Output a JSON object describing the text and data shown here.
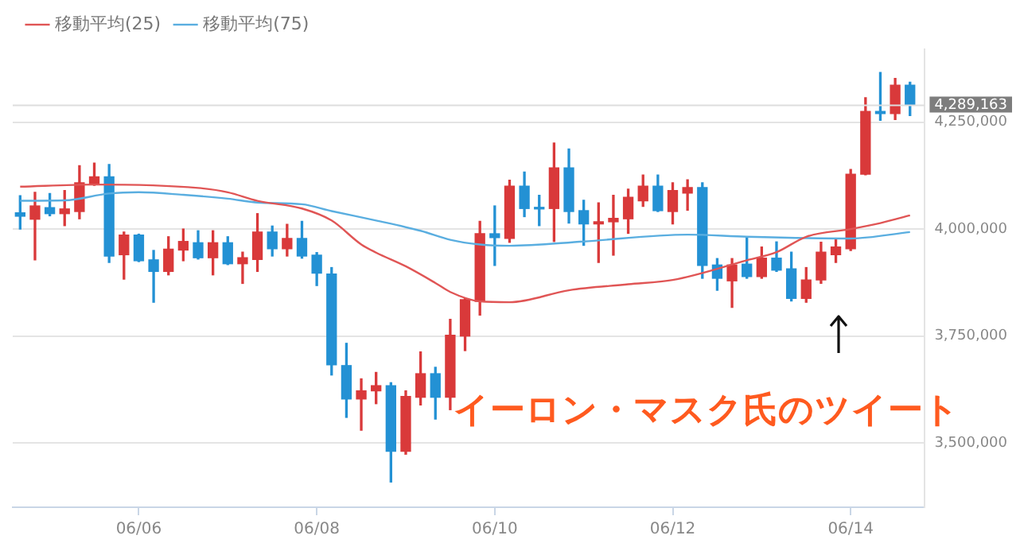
{
  "chart_data": {
    "type": "candlestick",
    "x": [
      "--06-04T16:00",
      "--06-04T20:00",
      "--06-05T00:00",
      "--06-05T04:00",
      "--06-05T08:00",
      "--06-05T12:00",
      "--06-05T16:00",
      "--06-05T20:00",
      "--06-06T00:00",
      "--06-06T04:00",
      "--06-06T08:00",
      "--06-06T12:00",
      "--06-06T16:00",
      "--06-06T20:00",
      "--06-07T00:00",
      "--06-07T04:00",
      "--06-07T08:00",
      "--06-07T12:00",
      "--06-07T16:00",
      "--06-07T20:00",
      "--06-08T00:00",
      "--06-08T04:00",
      "--06-08T08:00",
      "--06-08T12:00",
      "--06-08T16:00",
      "--06-08T20:00",
      "--06-09T00:00",
      "--06-09T04:00",
      "--06-09T08:00",
      "--06-09T12:00",
      "--06-09T16:00",
      "--06-09T20:00",
      "--06-10T00:00",
      "--06-10T04:00",
      "--06-10T08:00",
      "--06-10T12:00",
      "--06-10T16:00",
      "--06-10T20:00",
      "--06-11T00:00",
      "--06-11T04:00",
      "--06-11T08:00",
      "--06-11T12:00",
      "--06-11T16:00",
      "--06-11T20:00",
      "--06-12T00:00",
      "--06-12T04:00",
      "--06-12T08:00",
      "--06-12T12:00",
      "--06-12T16:00",
      "--06-12T20:00",
      "--06-13T00:00",
      "--06-13T04:00",
      "--06-13T08:00",
      "--06-13T12:00",
      "--06-13T16:00",
      "--06-13T20:00",
      "--06-14T00:00",
      "--06-14T04:00",
      "--06-14T08:00",
      "--06-14T12:00",
      "--06-14T16:00"
    ],
    "ohlc": [
      [
        4038000,
        4078000,
        4000000,
        4030000
      ],
      [
        4023000,
        4086000,
        3928000,
        4054000
      ],
      [
        4050000,
        4083000,
        4031000,
        4036000
      ],
      [
        4036000,
        4090000,
        4008000,
        4047000
      ],
      [
        4041000,
        4148000,
        4024000,
        4108000
      ],
      [
        4104000,
        4154000,
        4102000,
        4122000
      ],
      [
        4122000,
        4151000,
        3922000,
        3937000
      ],
      [
        3940000,
        3993000,
        3883000,
        3986000
      ],
      [
        3986000,
        3988000,
        3924000,
        3926000
      ],
      [
        3928000,
        3950000,
        3829000,
        3901000
      ],
      [
        3901000,
        3982000,
        3893000,
        3953000
      ],
      [
        3951000,
        4000000,
        3926000,
        3971000
      ],
      [
        3968000,
        3996000,
        3930000,
        3933000
      ],
      [
        3933000,
        3996000,
        3893000,
        3968000
      ],
      [
        3968000,
        3982000,
        3917000,
        3919000
      ],
      [
        3919000,
        3946000,
        3873000,
        3933000
      ],
      [
        3929000,
        4036000,
        3901000,
        3993000
      ],
      [
        3993000,
        4007000,
        3937000,
        3954000
      ],
      [
        3954000,
        4011000,
        3937000,
        3978000
      ],
      [
        3978000,
        4018000,
        3932000,
        3937000
      ],
      [
        3939000,
        3945000,
        3868000,
        3897000
      ],
      [
        3895000,
        3910000,
        3659000,
        3683000
      ],
      [
        3681000,
        3733000,
        3560000,
        3603000
      ],
      [
        3603000,
        3650000,
        3530000,
        3622000
      ],
      [
        3622000,
        3665000,
        3592000,
        3634000
      ],
      [
        3634000,
        3641000,
        3409000,
        3481000
      ],
      [
        3481000,
        3622000,
        3474000,
        3609000
      ],
      [
        3607000,
        3713000,
        3589000,
        3662000
      ],
      [
        3662000,
        3677000,
        3556000,
        3607000
      ],
      [
        3607000,
        3789000,
        3578000,
        3752000
      ],
      [
        3750000,
        3839000,
        3716000,
        3835000
      ],
      [
        3831000,
        4018000,
        3799000,
        3989000
      ],
      [
        3989000,
        4054000,
        3915000,
        3980000
      ],
      [
        3978000,
        4114000,
        3969000,
        4100000
      ],
      [
        4100000,
        4133000,
        4029000,
        4048000
      ],
      [
        4050000,
        4079000,
        4008000,
        4047000
      ],
      [
        4048000,
        4201000,
        3971000,
        4143000
      ],
      [
        4143000,
        4187000,
        4014000,
        4041000
      ],
      [
        4043000,
        4067000,
        3962000,
        4012000
      ],
      [
        4012000,
        4061000,
        3922000,
        4017000
      ],
      [
        4017000,
        4079000,
        3939000,
        4025000
      ],
      [
        4024000,
        4093000,
        3990000,
        4074000
      ],
      [
        4066000,
        4126000,
        4053000,
        4100000
      ],
      [
        4100000,
        4126000,
        4041000,
        4043000
      ],
      [
        4041000,
        4108000,
        4012000,
        4090000
      ],
      [
        4084000,
        4115000,
        4044000,
        4097000
      ],
      [
        4097000,
        4108000,
        3885000,
        3915000
      ],
      [
        3916000,
        3931000,
        3857000,
        3885000
      ],
      [
        3879000,
        3931000,
        3817000,
        3916000
      ],
      [
        3918000,
        3982000,
        3885000,
        3889000
      ],
      [
        3889000,
        3958000,
        3885000,
        3932000
      ],
      [
        3932000,
        3970000,
        3901000,
        3904000
      ],
      [
        3907000,
        3946000,
        3832000,
        3838000
      ],
      [
        3838000,
        3910000,
        3829000,
        3881000
      ],
      [
        3881000,
        3969000,
        3873000,
        3946000
      ],
      [
        3940000,
        3976000,
        3922000,
        3958000
      ],
      [
        3954000,
        4139000,
        3950000,
        4128000
      ],
      [
        4128000,
        4307000,
        4127000,
        4275000
      ],
      [
        4275000,
        4366000,
        4254000,
        4270000
      ],
      [
        4270000,
        4352000,
        4256000,
        4336000
      ],
      [
        4336000,
        4343000,
        4265000,
        4289163
      ]
    ],
    "colors": [
      "#2391d4",
      "#d9393a",
      "#2391d4",
      "#d9393a",
      "#d9393a",
      "#d9393a",
      "#2391d4",
      "#d9393a",
      "#2391d4",
      "#2391d4",
      "#d9393a",
      "#d9393a",
      "#2391d4",
      "#d9393a",
      "#2391d4",
      "#d9393a",
      "#d9393a",
      "#2391d4",
      "#d9393a",
      "#2391d4",
      "#2391d4",
      "#2391d4",
      "#2391d4",
      "#d9393a",
      "#d9393a",
      "#2391d4",
      "#d9393a",
      "#d9393a",
      "#2391d4",
      "#d9393a",
      "#d9393a",
      "#d9393a",
      "#2391d4",
      "#d9393a",
      "#2391d4",
      "#2391d4",
      "#d9393a",
      "#2391d4",
      "#2391d4",
      "#d9393a",
      "#d9393a",
      "#d9393a",
      "#d9393a",
      "#2391d4",
      "#d9393a",
      "#d9393a",
      "#2391d4",
      "#2391d4",
      "#d9393a",
      "#2391d4",
      "#d9393a",
      "#2391d4",
      "#2391d4",
      "#d9393a",
      "#d9393a",
      "#d9393a",
      "#d9393a",
      "#d9393a",
      "#2391d4",
      "#d9393a",
      "#2391d4"
    ],
    "series": [
      {
        "type": "line",
        "name": "移動平均(25)",
        "color": "#e05555",
        "x": [
          "--06-04T16:00",
          "--06-05T12:00",
          "--06-06T16:00",
          "--06-07T00:00",
          "--06-07T08:00",
          "--06-07T20:00",
          "--06-08T04:00",
          "--06-08T12:00",
          "--06-08T16:00",
          "--06-09T00:00",
          "--06-09T08:00",
          "--06-09T12:00",
          "--06-09T20:00",
          "--06-10T04:00",
          "--06-10T20:00",
          "--06-11T12:00",
          "--06-12T00:00",
          "--06-12T20:00",
          "--06-13T04:00",
          "--06-13T12:00",
          "--06-14T00:00",
          "--06-14T08:00",
          "--06-14T16:00"
        ],
        "values": [
          4099000,
          4104000,
          4096000,
          4086000,
          4066000,
          4048000,
          4020000,
          3964000,
          3945000,
          3913000,
          3874000,
          3853000,
          3831000,
          3829000,
          3857000,
          3871000,
          3881000,
          3927000,
          3946000,
          3982000,
          4000000,
          4014000,
          4032000
        ]
      },
      {
        "type": "line",
        "name": "移動平均(75)",
        "color": "#5aaee0",
        "x": [
          "--06-04T16:00",
          "--06-05T04:00",
          "--06-05T16:00",
          "--06-06T00:00",
          "--06-06T12:00",
          "--06-07T00:00",
          "--06-07T08:00",
          "--06-07T20:00",
          "--06-08T04:00",
          "--06-08T16:00",
          "--06-09T04:00",
          "--06-09T12:00",
          "--06-09T20:00",
          "--06-10T04:00",
          "--06-11T00:00",
          "--06-12T04:00",
          "--06-12T20:00",
          "--06-14T00:00",
          "--06-14T16:00"
        ],
        "values": [
          4066000,
          4067000,
          4083000,
          4086000,
          4080000,
          4071000,
          4062000,
          4058000,
          4042000,
          4020000,
          3996000,
          3975000,
          3964000,
          3961000,
          3971000,
          3987000,
          3982000,
          3978000,
          3993000
        ]
      }
    ],
    "xlim": [
      "--06-04T14:00",
      "--06-14T20:00"
    ],
    "xticks": [
      {
        "value": "--06-06",
        "label": "06/06"
      },
      {
        "value": "--06-08",
        "label": "06/08"
      },
      {
        "value": "--06-10",
        "label": "06/10"
      },
      {
        "value": "--06-12",
        "label": "06/12"
      },
      {
        "value": "--06-14",
        "label": "06/14"
      }
    ],
    "ylim": [
      3350000,
      4420000
    ],
    "yticks": [
      {
        "value": 3500000,
        "label": "3,500,000"
      },
      {
        "value": 3750000,
        "label": "3,750,000"
      },
      {
        "value": 4000000,
        "label": "4,000,000"
      },
      {
        "value": 4250000,
        "label": "4,250,000"
      }
    ],
    "grid": "y",
    "legend": "top left",
    "marker": "none",
    "ref_lines": [
      {
        "axis": "y",
        "value": 4289163,
        "label": "4,289,163",
        "color": "#dddddd"
      }
    ],
    "annotations": [
      "イーロン・マスク氏のツイート"
    ]
  }
}
